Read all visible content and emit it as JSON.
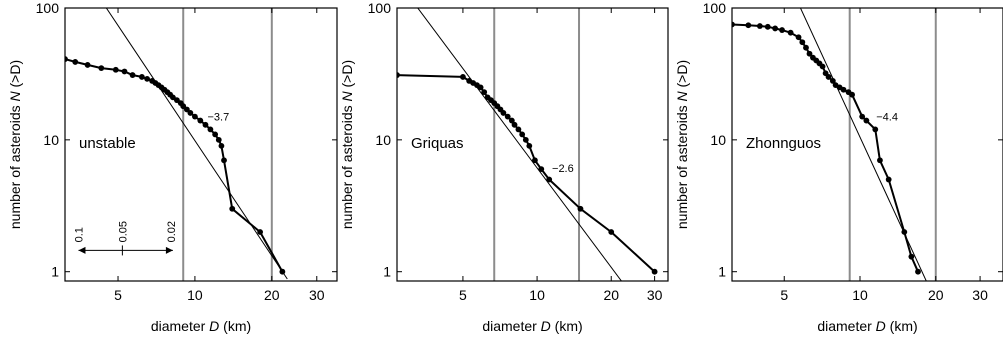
{
  "chart_data": [
    {
      "type": "line",
      "xscale": "log",
      "yscale": "log",
      "xlim": [
        3.1,
        36
      ],
      "ylim": [
        0.85,
        100
      ],
      "xticks": [
        5,
        10,
        20,
        30
      ],
      "yticks": [
        1,
        10,
        100
      ],
      "xlabel_prefix": "diameter ",
      "xlabel_var": "D",
      "xlabel_suffix": " (km)",
      "ylabel_prefix": "number of asteroids ",
      "ylabel_var": "N",
      "ylabel_suffix": " (>D)",
      "panel_label": "unstable",
      "vlines": [
        9.0,
        20.0
      ],
      "slope_label": "−3.7",
      "slope_label_at": [
        11.2,
        15
      ],
      "fit_line": [
        [
          4.5,
          100
        ],
        [
          23.0,
          0.88
        ]
      ],
      "x": [
        3.1,
        3.4,
        3.8,
        4.3,
        4.9,
        5.3,
        5.7,
        6.2,
        6.5,
        6.8,
        7.0,
        7.2,
        7.4,
        7.6,
        7.8,
        8.0,
        8.2,
        8.5,
        8.8,
        9.0,
        9.3,
        9.6,
        10.0,
        10.5,
        11.0,
        11.5,
        12.0,
        12.4,
        12.7,
        13.0,
        14.0,
        18.0,
        22.0
      ],
      "y": [
        41,
        39,
        37,
        35,
        34,
        33,
        31,
        30,
        29,
        28,
        27,
        26,
        25,
        24,
        23,
        22,
        21,
        20,
        19,
        18,
        17,
        16,
        15,
        14,
        13,
        12,
        11,
        10,
        9,
        7,
        3,
        2,
        1
      ],
      "scale_bar": {
        "labels": [
          "0.1",
          "0.05",
          "0.02"
        ],
        "x_from": 3.5,
        "x_to": 8.2,
        "x_tick": 5.2,
        "y": 1.45
      }
    },
    {
      "type": "line",
      "xscale": "log",
      "yscale": "log",
      "xlim": [
        2.7,
        34
      ],
      "ylim": [
        0.85,
        100
      ],
      "xticks": [
        5,
        10,
        20,
        30
      ],
      "yticks": [
        1,
        10,
        100
      ],
      "xlabel_prefix": "diameter ",
      "xlabel_var": "D",
      "xlabel_suffix": " (km)",
      "ylabel_prefix": "number of asteroids ",
      "ylabel_var": "N",
      "ylabel_suffix": " (>D)",
      "panel_label": "Griquas",
      "vlines": [
        6.7,
        14.8
      ],
      "slope_label": "−2.6",
      "slope_label_at": [
        11.5,
        6.1
      ],
      "fit_line": [
        [
          3.1,
          115
        ],
        [
          22.0,
          0.85
        ]
      ],
      "x": [
        2.7,
        5.0,
        5.3,
        5.5,
        5.7,
        5.9,
        6.1,
        6.3,
        6.5,
        6.7,
        6.9,
        7.1,
        7.3,
        7.6,
        7.9,
        8.1,
        8.4,
        8.7,
        9.0,
        9.3,
        9.8,
        10.4,
        11.2,
        15.0,
        20.0,
        30.0
      ],
      "y": [
        31,
        30,
        28,
        27,
        26,
        25,
        23,
        21,
        20,
        19,
        18,
        17,
        16,
        15,
        14,
        13,
        12,
        11,
        10,
        9,
        7,
        6,
        5,
        3,
        2,
        1
      ]
    },
    {
      "type": "line",
      "xscale": "log",
      "yscale": "log",
      "xlim": [
        3.1,
        37
      ],
      "ylim": [
        0.85,
        100
      ],
      "xticks": [
        5,
        10,
        20,
        30
      ],
      "yticks": [
        1,
        10,
        100
      ],
      "xlabel_prefix": "diameter ",
      "xlabel_var": "D",
      "xlabel_suffix": " (km)",
      "ylabel_prefix": "number of asteroids ",
      "ylabel_var": "N",
      "ylabel_suffix": " (>D)",
      "panel_label": "Zhonnguos",
      "vlines": [
        9.1,
        20.0
      ],
      "slope_label": "−4.4",
      "slope_label_at": [
        11.6,
        15
      ],
      "fit_line": [
        [
          5.8,
          100
        ],
        [
          18.5,
          0.82
        ]
      ],
      "x": [
        3.1,
        3.6,
        4.0,
        4.3,
        4.6,
        4.9,
        5.3,
        5.7,
        5.9,
        6.1,
        6.3,
        6.5,
        6.7,
        6.9,
        7.1,
        7.3,
        7.5,
        7.8,
        8.0,
        8.3,
        8.6,
        9.0,
        9.3,
        10.2,
        10.6,
        11.5,
        12.0,
        13.0,
        15.0,
        16.0,
        17.0
      ],
      "y": [
        75,
        74,
        73,
        72,
        70,
        68,
        65,
        60,
        55,
        50,
        45,
        42,
        40,
        38,
        36,
        32,
        30,
        28,
        26,
        25,
        24,
        23,
        22,
        15,
        14,
        12,
        7,
        5,
        2,
        1.3,
        1
      ],
      "scale_bar": null
    }
  ]
}
